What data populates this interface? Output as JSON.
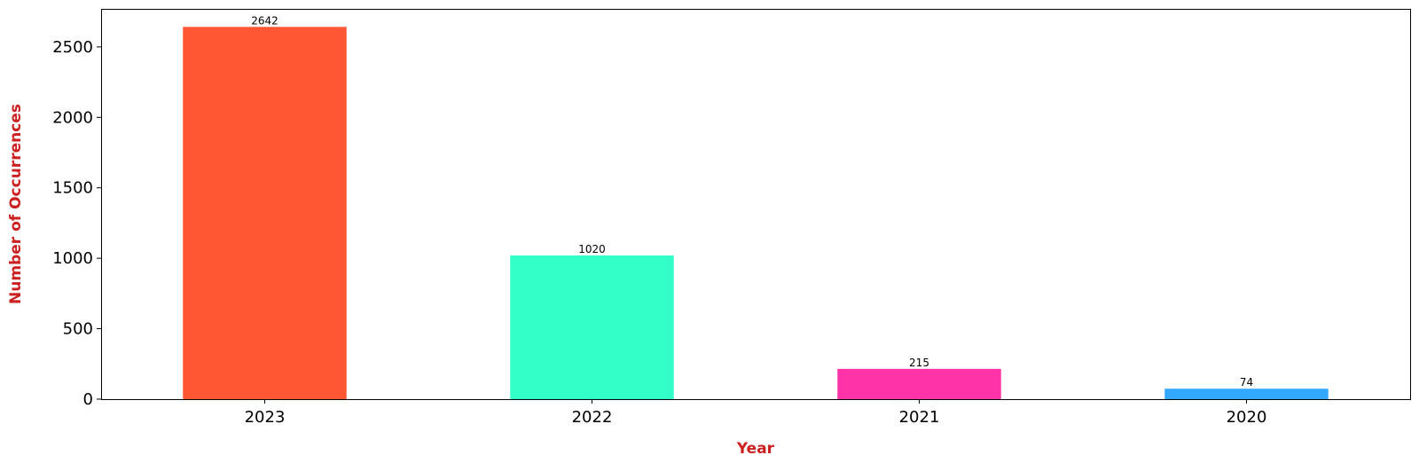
{
  "chart_data": {
    "type": "bar",
    "categories": [
      "2023",
      "2022",
      "2021",
      "2020"
    ],
    "values": [
      2642,
      1020,
      215,
      74
    ],
    "data_labels": [
      "2642",
      "1020",
      "215",
      "74"
    ],
    "bar_colors": [
      "#ff5733",
      "#33ffc8",
      "#ff33a8",
      "#33a8ff"
    ],
    "title": "",
    "xlabel": "Year",
    "ylabel": "Number of Occurrences",
    "axis_label_color": "#cc1f1f",
    "ylim": [
      0,
      2770
    ],
    "yticks": [
      0,
      500,
      1000,
      1500,
      2000,
      2500
    ],
    "ytick_labels": [
      "0",
      "500",
      "1000",
      "1500",
      "2000",
      "2500"
    ],
    "grid": false,
    "legend": "none"
  }
}
